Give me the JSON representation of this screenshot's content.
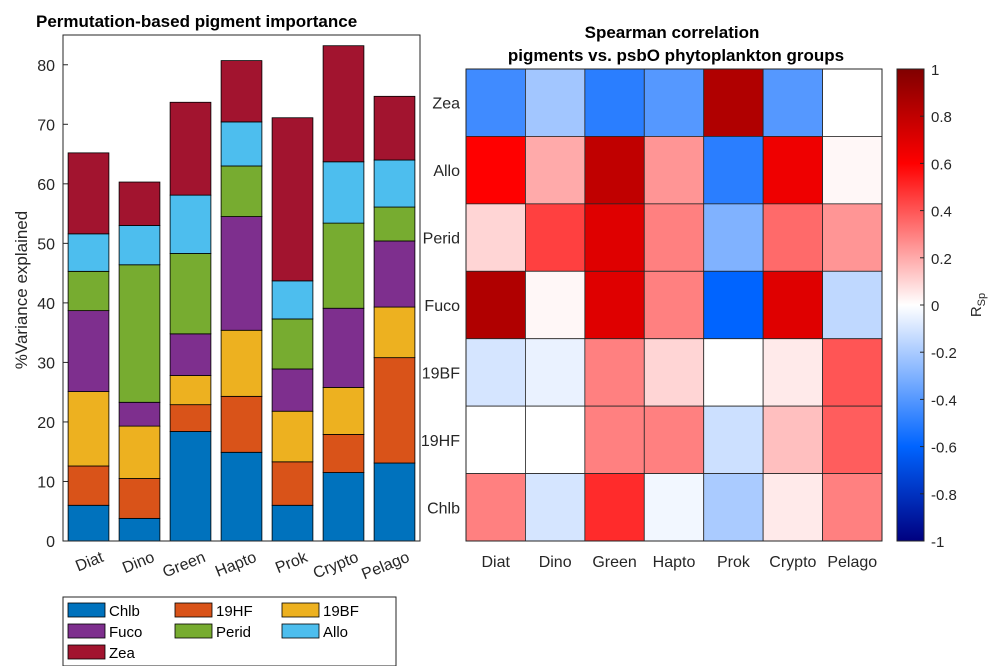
{
  "chart_data": [
    {
      "type": "bar",
      "stacked": true,
      "title": "Permutation-based pigment importance",
      "ylabel": "%Variance explained",
      "xlabel": "",
      "ylim": [
        0,
        85
      ],
      "yticks": [
        0,
        10,
        20,
        30,
        40,
        50,
        60,
        70,
        80
      ],
      "categories": [
        "Diat",
        "Dino",
        "Green",
        "Hapto",
        "Prok",
        "Crypto",
        "Pelago"
      ],
      "series": [
        {
          "name": "Chlb",
          "color": "#0072BD",
          "values": [
            6.0,
            3.8,
            18.4,
            14.9,
            6.0,
            11.5,
            13.1
          ]
        },
        {
          "name": "19HF",
          "color": "#D95319",
          "values": [
            6.6,
            6.7,
            4.5,
            9.4,
            7.3,
            6.4,
            17.7
          ]
        },
        {
          "name": "19BF",
          "color": "#EDB120",
          "values": [
            12.5,
            8.8,
            4.9,
            11.1,
            8.5,
            7.9,
            8.5
          ]
        },
        {
          "name": "Fuco",
          "color": "#7E2F8E",
          "values": [
            13.6,
            4.0,
            7.0,
            19.1,
            7.1,
            13.3,
            11.1
          ]
        },
        {
          "name": "Perid",
          "color": "#77AC30",
          "values": [
            6.6,
            23.1,
            13.5,
            8.5,
            8.4,
            14.3,
            5.7
          ]
        },
        {
          "name": "Allo",
          "color": "#4DBEEE",
          "values": [
            6.3,
            6.6,
            9.8,
            7.4,
            6.4,
            10.3,
            7.9
          ]
        },
        {
          "name": "Zea",
          "color": "#A2142F",
          "values": [
            13.6,
            7.3,
            15.6,
            10.3,
            27.4,
            19.5,
            10.7
          ]
        }
      ],
      "legend": {
        "placement": "bottom-outside",
        "columns": 3
      }
    },
    {
      "type": "heatmap",
      "title": [
        "Spearman correlation",
        "pigments vs. psbO phytoplankton groups"
      ],
      "x": [
        "Diat",
        "Dino",
        "Green",
        "Hapto",
        "Prok",
        "Crypto",
        "Pelago"
      ],
      "y": [
        "Zea",
        "Allo",
        "Perid",
        "Fuco",
        "19BF",
        "19HF",
        "Chlb"
      ],
      "values": [
        [
          -0.45,
          -0.22,
          -0.5,
          -0.4,
          0.85,
          -0.4,
          0.0
        ],
        [
          0.6,
          0.2,
          0.8,
          0.25,
          -0.5,
          0.65,
          0.02
        ],
        [
          0.1,
          0.45,
          0.7,
          0.3,
          -0.3,
          0.35,
          0.25
        ],
        [
          0.85,
          0.02,
          0.7,
          0.3,
          -0.6,
          0.7,
          -0.15
        ],
        [
          -0.1,
          -0.05,
          0.3,
          0.1,
          0.0,
          0.05,
          0.4
        ],
        [
          0.0,
          0.0,
          0.3,
          0.3,
          -0.12,
          0.15,
          0.38
        ],
        [
          0.3,
          -0.1,
          0.5,
          -0.03,
          -0.2,
          0.05,
          0.3
        ]
      ],
      "colorbar": {
        "label": "R",
        "label_sub": "Sp",
        "range": [
          -1,
          1
        ],
        "ticks": [
          "1",
          "0.8",
          "0.6",
          "0.4",
          "0.2",
          "0",
          "-0.2",
          "-0.4",
          "-0.6",
          "-0.8",
          "-1"
        ]
      }
    }
  ]
}
